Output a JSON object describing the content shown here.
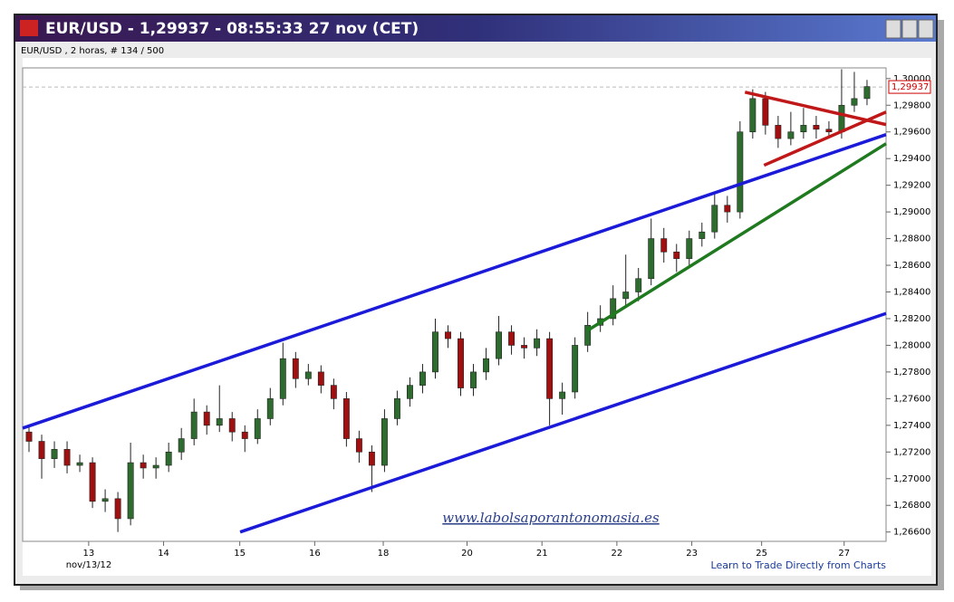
{
  "window_title": "EUR/USD - 1,29937 - 08:55:33  27 nov (CET)",
  "chart_data": {
    "type": "candlestick",
    "subtitle": "EUR/USD , 2 horas, # 134 / 500",
    "date_label": "nov/13/12",
    "watermark": "www.labolsaporantonomasia.es",
    "footer_link": "Learn to Trade Directly from Charts",
    "up_color": "#2e6b2e",
    "down_color": "#a01010",
    "xlim": [
      0,
      68
    ],
    "ylim": [
      1.2653,
      1.3008
    ],
    "xticks": [
      {
        "value": 5.2,
        "label": "13"
      },
      {
        "value": 11.1,
        "label": "14"
      },
      {
        "value": 17.1,
        "label": "15"
      },
      {
        "value": 23.0,
        "label": "16"
      },
      {
        "value": 28.4,
        "label": "18"
      },
      {
        "value": 35.0,
        "label": "20"
      },
      {
        "value": 40.9,
        "label": "21"
      },
      {
        "value": 46.8,
        "label": "22"
      },
      {
        "value": 52.7,
        "label": "23"
      },
      {
        "value": 58.2,
        "label": "25"
      },
      {
        "value": 64.7,
        "label": "27"
      }
    ],
    "yticks": [
      {
        "value": 1.266,
        "label": "1,26600"
      },
      {
        "value": 1.268,
        "label": "1,26800"
      },
      {
        "value": 1.27,
        "label": "1,27000"
      },
      {
        "value": 1.272,
        "label": "1,27200"
      },
      {
        "value": 1.274,
        "label": "1,27400"
      },
      {
        "value": 1.276,
        "label": "1,27600"
      },
      {
        "value": 1.278,
        "label": "1,27800"
      },
      {
        "value": 1.28,
        "label": "1,28000"
      },
      {
        "value": 1.282,
        "label": "1,28200"
      },
      {
        "value": 1.284,
        "label": "1,28400"
      },
      {
        "value": 1.286,
        "label": "1,28600"
      },
      {
        "value": 1.288,
        "label": "1,28800"
      },
      {
        "value": 1.29,
        "label": "1,29000"
      },
      {
        "value": 1.292,
        "label": "1,29200"
      },
      {
        "value": 1.294,
        "label": "1,29400"
      },
      {
        "value": 1.296,
        "label": "1,29600"
      },
      {
        "value": 1.298,
        "label": "1,29800"
      },
      {
        "value": 1.3,
        "label": "1,30000"
      }
    ],
    "current": {
      "value": 1.29937,
      "label": "1,29937",
      "color": "#cc0000"
    },
    "open": [
      1.2735,
      1.2728,
      1.2715,
      1.2722,
      1.271,
      1.2712,
      1.2683,
      1.2685,
      1.267,
      1.2712,
      1.2708,
      1.271,
      1.272,
      1.273,
      1.275,
      1.274,
      1.2745,
      1.2735,
      1.273,
      1.2745,
      1.276,
      1.279,
      1.2775,
      1.278,
      1.277,
      1.276,
      1.273,
      1.272,
      1.271,
      1.2745,
      1.276,
      1.277,
      1.278,
      1.281,
      1.2805,
      1.2768,
      1.278,
      1.279,
      1.281,
      1.28,
      1.2798,
      1.2805,
      1.276,
      1.2765,
      1.28,
      1.2815,
      1.282,
      1.2835,
      1.284,
      1.285,
      1.288,
      1.287,
      1.2865,
      1.288,
      1.2885,
      1.2905,
      1.29,
      1.296,
      1.2985,
      1.2965,
      1.2955,
      1.296,
      1.2965,
      1.2962,
      1.296,
      1.298,
      1.2985
    ],
    "high": [
      1.274,
      1.2733,
      1.2728,
      1.2728,
      1.2718,
      1.2716,
      1.2692,
      1.269,
      1.2727,
      1.2718,
      1.2716,
      1.2727,
      1.2738,
      1.276,
      1.2755,
      1.277,
      1.275,
      1.274,
      1.2752,
      1.2768,
      1.2802,
      1.2795,
      1.2786,
      1.2785,
      1.2775,
      1.2765,
      1.2736,
      1.2725,
      1.2752,
      1.2766,
      1.2776,
      1.2786,
      1.282,
      1.2815,
      1.281,
      1.2786,
      1.2798,
      1.2822,
      1.2815,
      1.2806,
      1.2812,
      1.281,
      1.2772,
      1.2806,
      1.2825,
      1.283,
      1.2845,
      1.2868,
      1.2858,
      1.2895,
      1.2888,
      1.2876,
      1.2886,
      1.2892,
      1.2915,
      1.2912,
      1.2968,
      1.2992,
      1.299,
      1.2972,
      1.2975,
      1.2978,
      1.2972,
      1.2968,
      1.3007,
      1.3005,
      1.2999
    ],
    "low": [
      1.272,
      1.27,
      1.2708,
      1.2704,
      1.2705,
      1.2678,
      1.2675,
      1.266,
      1.2665,
      1.27,
      1.27,
      1.2705,
      1.2714,
      1.2725,
      1.2733,
      1.2735,
      1.2728,
      1.272,
      1.2726,
      1.274,
      1.2755,
      1.2768,
      1.277,
      1.2764,
      1.2752,
      1.2724,
      1.2712,
      1.269,
      1.2705,
      1.274,
      1.2754,
      1.2764,
      1.2775,
      1.2798,
      1.2762,
      1.2762,
      1.2774,
      1.2785,
      1.2793,
      1.279,
      1.2792,
      1.274,
      1.2748,
      1.276,
      1.2795,
      1.281,
      1.2815,
      1.283,
      1.2833,
      1.2845,
      1.2862,
      1.2855,
      1.286,
      1.2874,
      1.288,
      1.2892,
      1.2895,
      1.2955,
      1.2958,
      1.2948,
      1.295,
      1.2955,
      1.2955,
      1.2955,
      1.2955,
      1.2975,
      1.298
    ],
    "close": [
      1.2728,
      1.2715,
      1.2722,
      1.271,
      1.2712,
      1.2683,
      1.2685,
      1.267,
      1.2712,
      1.2708,
      1.271,
      1.272,
      1.273,
      1.275,
      1.274,
      1.2745,
      1.2735,
      1.273,
      1.2745,
      1.276,
      1.279,
      1.2775,
      1.278,
      1.277,
      1.276,
      1.273,
      1.272,
      1.271,
      1.2745,
      1.276,
      1.277,
      1.278,
      1.281,
      1.2805,
      1.2768,
      1.278,
      1.279,
      1.281,
      1.28,
      1.2798,
      1.2805,
      1.276,
      1.2765,
      1.28,
      1.2815,
      1.282,
      1.2835,
      1.284,
      1.285,
      1.288,
      1.287,
      1.2865,
      1.288,
      1.2885,
      1.2905,
      1.29,
      1.296,
      1.2985,
      1.2965,
      1.2955,
      1.296,
      1.2965,
      1.2962,
      1.296,
      1.298,
      1.2985,
      1.2994
    ],
    "trend_lines": [
      {
        "color": "#1a1ad8",
        "x": [
          0,
          68
        ],
        "y": [
          1.27379,
          1.2958
        ]
      },
      {
        "color": "#1a1ad8",
        "x": [
          17.13,
          68
        ],
        "y": [
          1.266,
          1.28239
        ]
      },
      {
        "color": "#1f7a1f",
        "x": [
          44.47,
          68
        ],
        "y": [
          1.2811,
          1.29512
        ]
      },
      {
        "color": "#c01818",
        "x": [
          56.89,
          68
        ],
        "y": [
          1.29898,
          1.29655
        ]
      },
      {
        "color": "#c01818",
        "x": [
          58.39,
          68
        ],
        "y": [
          1.2935,
          1.29749
        ]
      }
    ]
  }
}
